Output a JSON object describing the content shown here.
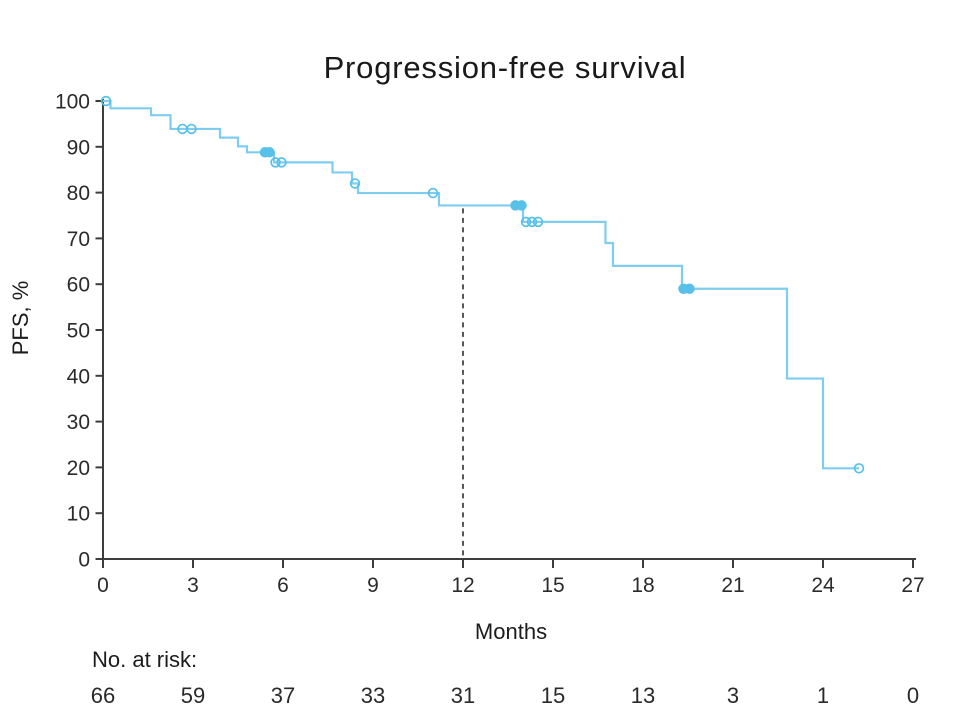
{
  "chart_data": {
    "type": "line",
    "subtype": "kaplan-meier-step",
    "title": "Progression-free survival",
    "xlabel": "Months",
    "ylabel": "PFS, %",
    "xlim": [
      0,
      27
    ],
    "ylim": [
      0,
      100
    ],
    "grid": false,
    "legend": "none",
    "xticks": [
      0,
      3,
      6,
      9,
      12,
      15,
      18,
      21,
      24,
      27
    ],
    "yticks": [
      0,
      10,
      20,
      30,
      40,
      50,
      60,
      70,
      80,
      90,
      100
    ],
    "line_color": "#7ecdf0",
    "censor_color": "#58c1ea",
    "axis_color": "#3d3d3d",
    "reference_line": {
      "x": 12,
      "style": "dashed",
      "color": "#2e2e2e",
      "top_pfs": 77.2
    },
    "series": [
      {
        "name": "PFS",
        "steps": [
          [
            0,
            100
          ],
          [
            0.25,
            98.4
          ],
          [
            1.6,
            96.9
          ],
          [
            2.25,
            93.9
          ],
          [
            3.9,
            92.0
          ],
          [
            4.5,
            90.1
          ],
          [
            4.8,
            88.8
          ],
          [
            5.7,
            86.6
          ],
          [
            7.65,
            84.4
          ],
          [
            8.3,
            82.0
          ],
          [
            8.5,
            79.9
          ],
          [
            11.2,
            77.2
          ],
          [
            14.0,
            73.6
          ],
          [
            16.75,
            69.0
          ],
          [
            17.0,
            64.0
          ],
          [
            19.3,
            59.0
          ],
          [
            22.8,
            39.4
          ],
          [
            24.0,
            19.8
          ]
        ],
        "end_time": 25.2
      }
    ],
    "censor_marks": [
      {
        "t": 0.1,
        "pfs": 100,
        "style": "open"
      },
      {
        "t": 2.65,
        "pfs": 93.9,
        "style": "open"
      },
      {
        "t": 2.95,
        "pfs": 93.9,
        "style": "open"
      },
      {
        "t": 5.4,
        "pfs": 88.8,
        "style": "filled"
      },
      {
        "t": 5.55,
        "pfs": 88.8,
        "style": "filled"
      },
      {
        "t": 5.75,
        "pfs": 86.6,
        "style": "open"
      },
      {
        "t": 5.95,
        "pfs": 86.6,
        "style": "open"
      },
      {
        "t": 8.4,
        "pfs": 82.0,
        "style": "open"
      },
      {
        "t": 11.0,
        "pfs": 79.9,
        "style": "open"
      },
      {
        "t": 13.75,
        "pfs": 77.2,
        "style": "filled"
      },
      {
        "t": 13.95,
        "pfs": 77.2,
        "style": "filled"
      },
      {
        "t": 14.1,
        "pfs": 73.6,
        "style": "open"
      },
      {
        "t": 14.3,
        "pfs": 73.6,
        "style": "open"
      },
      {
        "t": 14.5,
        "pfs": 73.6,
        "style": "open"
      },
      {
        "t": 19.35,
        "pfs": 59.0,
        "style": "filled"
      },
      {
        "t": 19.55,
        "pfs": 59.0,
        "style": "filled"
      },
      {
        "t": 25.2,
        "pfs": 19.8,
        "style": "open"
      }
    ],
    "risk_table": {
      "label": "No. at risk:",
      "times": [
        0,
        3,
        6,
        9,
        12,
        15,
        18,
        21,
        24,
        27
      ],
      "values": [
        66,
        59,
        37,
        33,
        31,
        15,
        13,
        3,
        1,
        0
      ]
    }
  }
}
